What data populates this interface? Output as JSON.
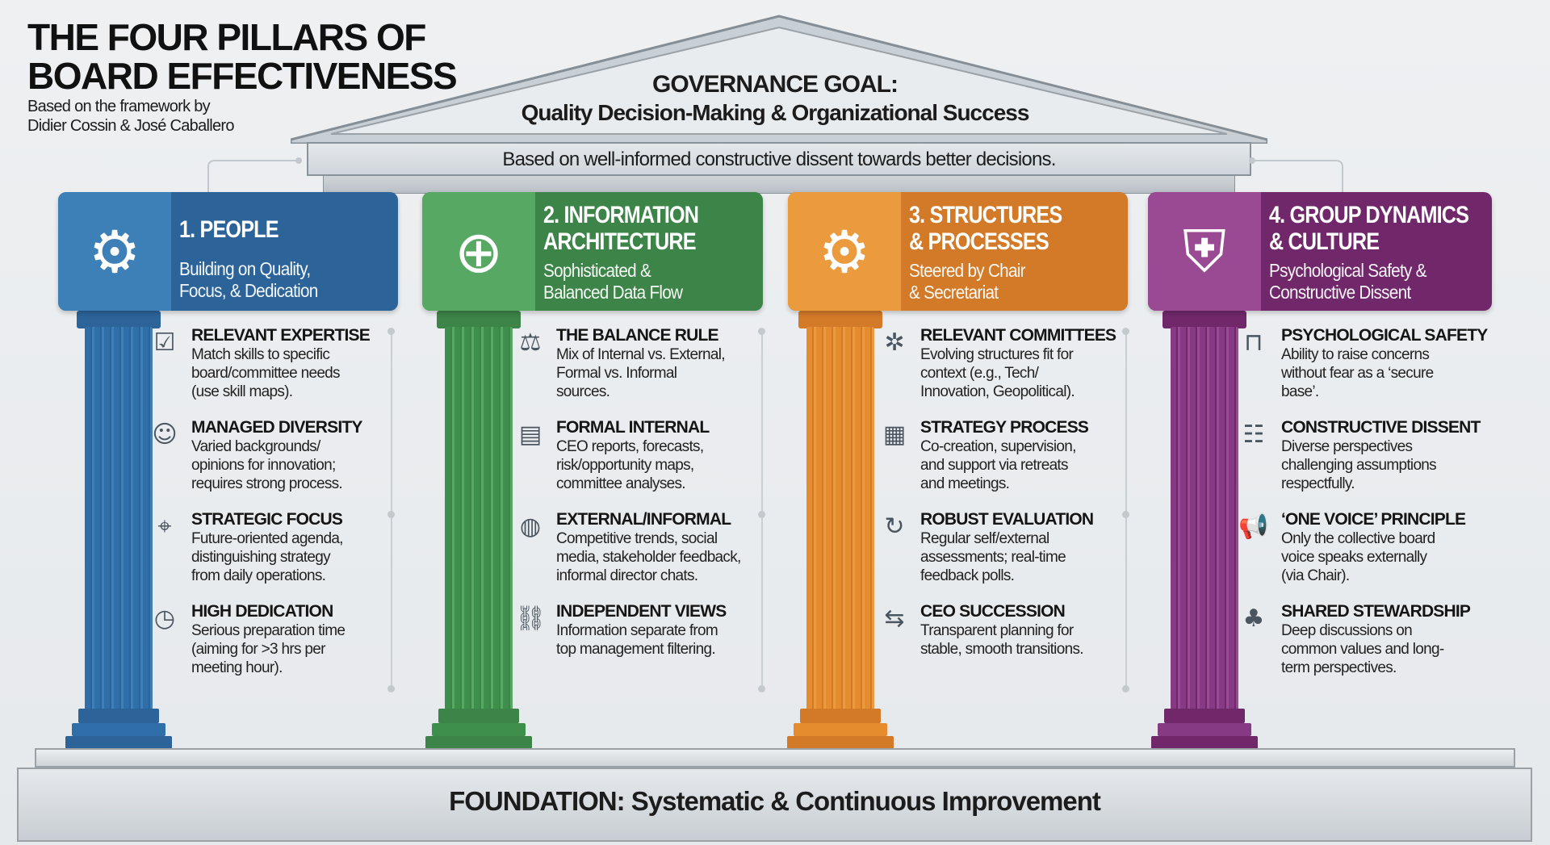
{
  "header": {
    "title": "THE FOUR PILLARS OF\nBOARD EFFECTIVENESS",
    "subtitle": "Based on the framework by\nDidier Cossin & José Caballero"
  },
  "roof": {
    "goal_label": "GOVERNANCE GOAL:",
    "goal": "Quality Decision-Making & Organizational Success",
    "band": "Based on well-informed constructive dissent towards better decisions."
  },
  "pillars": [
    {
      "title": "1. PEOPLE",
      "subtitle": "Building on Quality,\nFocus, & Dedication",
      "icon": "head-gears-icon",
      "glyph": "⚙",
      "color": "#2c6399",
      "light": "#3d80b8",
      "shaft": "#2f6ea8",
      "items": [
        {
          "icon": "brain-check-icon",
          "glyph": "☑",
          "title": "RELEVANT EXPERTISE",
          "body": "Match skills to specific\nboard/committee needs\n(use skill maps)."
        },
        {
          "icon": "group-icon",
          "glyph": "☺",
          "title": "MANAGED DIVERSITY",
          "body": "Varied backgrounds/\nopinions for innovation;\nrequires strong process."
        },
        {
          "icon": "telescope-icon",
          "glyph": "⌖",
          "title": "STRATEGIC FOCUS",
          "body": "Future-oriented agenda,\ndistinguishing strategy\nfrom daily operations."
        },
        {
          "icon": "clock-book-icon",
          "glyph": "◷",
          "title": "HIGH DEDICATION",
          "body": "Serious preparation time\n(aiming for >3 hrs per\nmeeting hour)."
        }
      ]
    },
    {
      "title": "2. INFORMATION\nARCHITECTURE",
      "subtitle": "Sophisticated &\nBalanced Data Flow",
      "icon": "globe-arrows-icon",
      "glyph": "⊕",
      "color": "#3d8448",
      "light": "#56a862",
      "shaft": "#3f8f4c",
      "items": [
        {
          "icon": "balance-scale-icon",
          "glyph": "⚖",
          "title": "THE BALANCE RULE",
          "body": "Mix of Internal vs. External,\nFormal vs. Informal\nsources."
        },
        {
          "icon": "report-document-icon",
          "glyph": "▤",
          "title": "FORMAL INTERNAL",
          "body": "CEO reports, forecasts,\nrisk/opportunity maps,\ncommittee analyses."
        },
        {
          "icon": "globe-ear-icon",
          "glyph": "◍",
          "title": "EXTERNAL/INFORMAL",
          "body": "Competitive trends, social\nmedia, stakeholder feedback,\ninformal director chats."
        },
        {
          "icon": "link-icon",
          "glyph": "⛓",
          "title": "INDEPENDENT VIEWS",
          "body": "Information separate from\ntop management filtering."
        }
      ]
    },
    {
      "title": "3. STRUCTURES\n& PROCESSES",
      "subtitle": "Steered by Chair\n& Secretariat",
      "icon": "gears-flow-icon",
      "glyph": "⚙",
      "color": "#d27a27",
      "light": "#eb9a3e",
      "shaft": "#e58c2e",
      "items": [
        {
          "icon": "network-gear-icon",
          "glyph": "✲",
          "title": "RELEVANT COMMITTEES",
          "body": "Evolving structures fit for\ncontext (e.g., Tech/\nInnovation, Geopolitical)."
        },
        {
          "icon": "strategy-board-icon",
          "glyph": "▦",
          "title": "STRATEGY PROCESS",
          "body": "Co-creation, supervision,\nand support via retreats\nand meetings."
        },
        {
          "icon": "cycle-evaluation-icon",
          "glyph": "↻",
          "title": "ROBUST EVALUATION",
          "body": "Regular self/external\nassessments; real-time\nfeedback polls."
        },
        {
          "icon": "handshake-icon",
          "glyph": "⇆",
          "title": "CEO SUCCESSION",
          "body": "Transparent planning for\nstable, smooth transitions."
        }
      ]
    },
    {
      "title": "4. GROUP DYNAMICS\n& CULTURE",
      "subtitle": "Psychological Safety &\nConstructive Dissent",
      "icon": "speech-shield-icon",
      "glyph": "⛨",
      "color": "#70286b",
      "light": "#9a4a92",
      "shaft": "#863a84",
      "items": [
        {
          "icon": "padlock-icon",
          "glyph": "⊓",
          "title": "PSYCHOLOGICAL SAFETY",
          "body": "Ability to raise concerns\nwithout fear as a ‘secure\nbase’."
        },
        {
          "icon": "people-discussion-icon",
          "glyph": "☷",
          "title": "CONSTRUCTIVE DISSENT",
          "body": "Diverse perspectives\nchallenging assumptions\nrespectfully."
        },
        {
          "icon": "megaphone-icon",
          "glyph": "📢",
          "title": "‘ONE VOICE’ PRINCIPLE",
          "body": "Only the collective board\nvoice speaks externally\n(via Chair)."
        },
        {
          "icon": "tree-icon",
          "glyph": "♣",
          "title": "SHARED STEWARDSHIP",
          "body": "Deep discussions on\ncommon values and long-\nterm perspectives."
        }
      ]
    }
  ],
  "foundation": "FOUNDATION: Systematic & Continuous Improvement"
}
